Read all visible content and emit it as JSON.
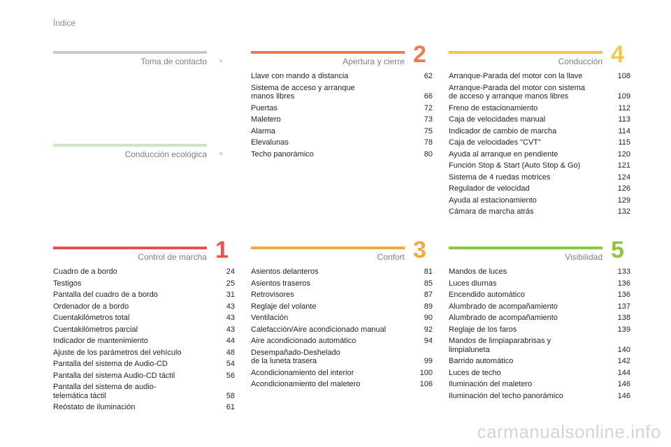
{
  "page_title": "Índice",
  "watermark": "carmanualsonline.info",
  "sections": {
    "toma_contacto": {
      "title": "Toma de contacto",
      "number": "",
      "color": "#c8c8c8",
      "entries": []
    },
    "conduccion_ecologica": {
      "title": "Conducción ecológica",
      "number": "",
      "color": "#cde3c3",
      "entries": []
    },
    "control_marcha": {
      "title": "Control de marcha",
      "number": "1",
      "color": "#e8514a",
      "entries": [
        {
          "title": "Cuadro de a bordo",
          "page": "24"
        },
        {
          "title": "Testigos",
          "page": "25"
        },
        {
          "title": "Pantalla del cuadro de a bordo",
          "page": "31"
        },
        {
          "title": "Ordenador de a bordo",
          "page": "43"
        },
        {
          "title": "Cuentakilómetros total",
          "page": "43"
        },
        {
          "title": "Cuentakilómetros parcial",
          "page": "43"
        },
        {
          "title": "Indicador de mantenimiento",
          "page": "44"
        },
        {
          "title": "Ajuste de los parámetros del vehículo",
          "page": "48"
        },
        {
          "title": "Pantalla del sistema de Audio-CD",
          "page": "54"
        },
        {
          "title": "Pantalla del sistema Audio-CD táctil",
          "page": "56"
        },
        {
          "title": "Pantalla del sistema de audio-\ntelemática táctil",
          "page": "58"
        },
        {
          "title": "Reóstato de iluminación",
          "page": "61"
        }
      ]
    },
    "apertura_cierre": {
      "title": "Apertura y cierre",
      "number": "2",
      "color": "#ec7d4a",
      "entries": [
        {
          "title": "Llave con mando a distancia",
          "page": "62"
        },
        {
          "title": "Sistema de acceso y arranque\nmanos libres",
          "page": "66"
        },
        {
          "title": "Puertas",
          "page": "72"
        },
        {
          "title": "Maletero",
          "page": "73"
        },
        {
          "title": "Alarma",
          "page": "75"
        },
        {
          "title": "Elevalunas",
          "page": "78"
        },
        {
          "title": "Techo panorámico",
          "page": "80"
        }
      ]
    },
    "confort": {
      "title": "Confort",
      "number": "3",
      "color": "#f3aa3c",
      "entries": [
        {
          "title": "Asientos delanteros",
          "page": "81"
        },
        {
          "title": "Asientos traseros",
          "page": "85"
        },
        {
          "title": "Retrovisores",
          "page": "87"
        },
        {
          "title": "Reglaje del volante",
          "page": "89"
        },
        {
          "title": "Ventilación",
          "page": "90"
        },
        {
          "title": "Calefacción/Aire acondicionado manual",
          "page": "92"
        },
        {
          "title": "Aire acondicionado automático",
          "page": "94"
        },
        {
          "title": "Desempañado-Deshelado\nde la luneta trasera",
          "page": "99"
        },
        {
          "title": "Acondicionamiento del interior",
          "page": "100"
        },
        {
          "title": "Acondicionamiento del maletero",
          "page": "106"
        }
      ]
    },
    "conduccion": {
      "title": "Conducción",
      "number": "4",
      "color": "#f6c743",
      "entries": [
        {
          "title": "Arranque-Parada del motor con la llave",
          "page": "108"
        },
        {
          "title": "Arranque-Parada del motor con sistema\nde acceso y arranque manos libres",
          "page": "109"
        },
        {
          "title": "Freno de estacionamiento",
          "page": "112"
        },
        {
          "title": "Caja de velocidades manual",
          "page": "113"
        },
        {
          "title": "Indicador de cambio de marcha",
          "page": "114"
        },
        {
          "title": "Caja de velocidades \"CVT\"",
          "page": "115"
        },
        {
          "title": "Ayuda al arranque en pendiente",
          "page": "120"
        },
        {
          "title": "Función Stop & Start (Auto Stop & Go)",
          "page": "121"
        },
        {
          "title": "Sistema de 4 ruedas motrices",
          "page": "124"
        },
        {
          "title": "Regulador de velocidad",
          "page": "126"
        },
        {
          "title": "Ayuda al estacionamiento",
          "page": "129"
        },
        {
          "title": "Cámara de marcha atrás",
          "page": "132"
        }
      ]
    },
    "visibilidad": {
      "title": "Visibilidad",
      "number": "5",
      "color": "#8dc63f",
      "entries": [
        {
          "title": "Mandos de luces",
          "page": "133"
        },
        {
          "title": "Luces diurnas",
          "page": "136"
        },
        {
          "title": "Encendido automático",
          "page": "136"
        },
        {
          "title": "Alumbrado de acompañamiento",
          "page": "137"
        },
        {
          "title": "Alumbrado de acompañamiento",
          "page": "138"
        },
        {
          "title": "Reglaje de los faros",
          "page": "139"
        },
        {
          "title": "Mandos de limpiaparabrisas y\nlimpialuneta",
          "page": "140"
        },
        {
          "title": "Barrido automático",
          "page": "142"
        },
        {
          "title": "Luces de techo",
          "page": "144"
        },
        {
          "title": "Iluminación del maletero",
          "page": "146"
        },
        {
          "title": "Iluminación del techo panorámico",
          "page": "146"
        }
      ]
    }
  }
}
